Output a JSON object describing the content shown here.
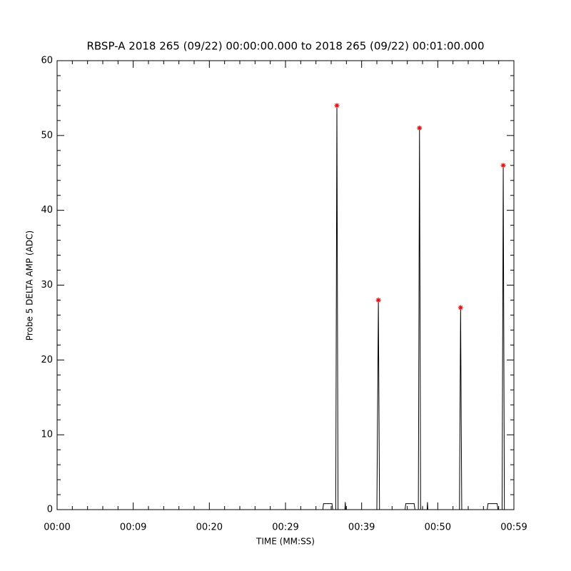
{
  "chart_data": {
    "type": "line",
    "title": "RBSP-A 2018 265 (09/22) 00:00:00.000 to 2018 265 (09/22) 00:01:00.000",
    "xlabel": "TIME (MM:SS)",
    "ylabel": "Probe 5 DELTA AMP (ADC)",
    "xlim": [
      0,
      60
    ],
    "ylim": [
      0,
      60
    ],
    "xticks": [
      {
        "value": 0,
        "label": "00:00"
      },
      {
        "value": 10,
        "label": "00:09"
      },
      {
        "value": 20,
        "label": "00:20"
      },
      {
        "value": 30,
        "label": "00:29"
      },
      {
        "value": 40,
        "label": "00:39"
      },
      {
        "value": 50,
        "label": "00:50"
      },
      {
        "value": 60,
        "label": "00:59"
      }
    ],
    "yticks": [
      0,
      10,
      20,
      30,
      40,
      50,
      60
    ],
    "minor_ticks": 5,
    "series": [
      {
        "type": "line",
        "color": "#000000",
        "x": [
          0,
          34.9,
          35.0,
          36.1,
          36.2,
          36.6,
          36.75,
          36.9,
          37.8,
          37.85,
          37.9,
          42.0,
          42.2,
          42.35,
          45.7,
          45.8,
          46.9,
          47.0,
          47.45,
          47.6,
          47.75,
          48.6,
          48.65,
          48.7,
          52.85,
          53.0,
          53.15,
          56.5,
          56.6,
          57.8,
          57.9,
          58.45,
          58.6,
          58.75,
          59.6
        ],
        "values": [
          0,
          0,
          0.8,
          0.8,
          0,
          0,
          54,
          0,
          0,
          1,
          0,
          0,
          28,
          0,
          0,
          0.8,
          0.8,
          0,
          0,
          51,
          0,
          0,
          1,
          0,
          0,
          27,
          0,
          0,
          0.8,
          0.8,
          0,
          0,
          46,
          0,
          0
        ]
      },
      {
        "type": "scatter",
        "color": "#ff0000",
        "marker": "asterisk",
        "x": [
          36.75,
          42.2,
          47.6,
          53.0,
          58.6
        ],
        "values": [
          54,
          28,
          51,
          27,
          46
        ]
      }
    ]
  }
}
